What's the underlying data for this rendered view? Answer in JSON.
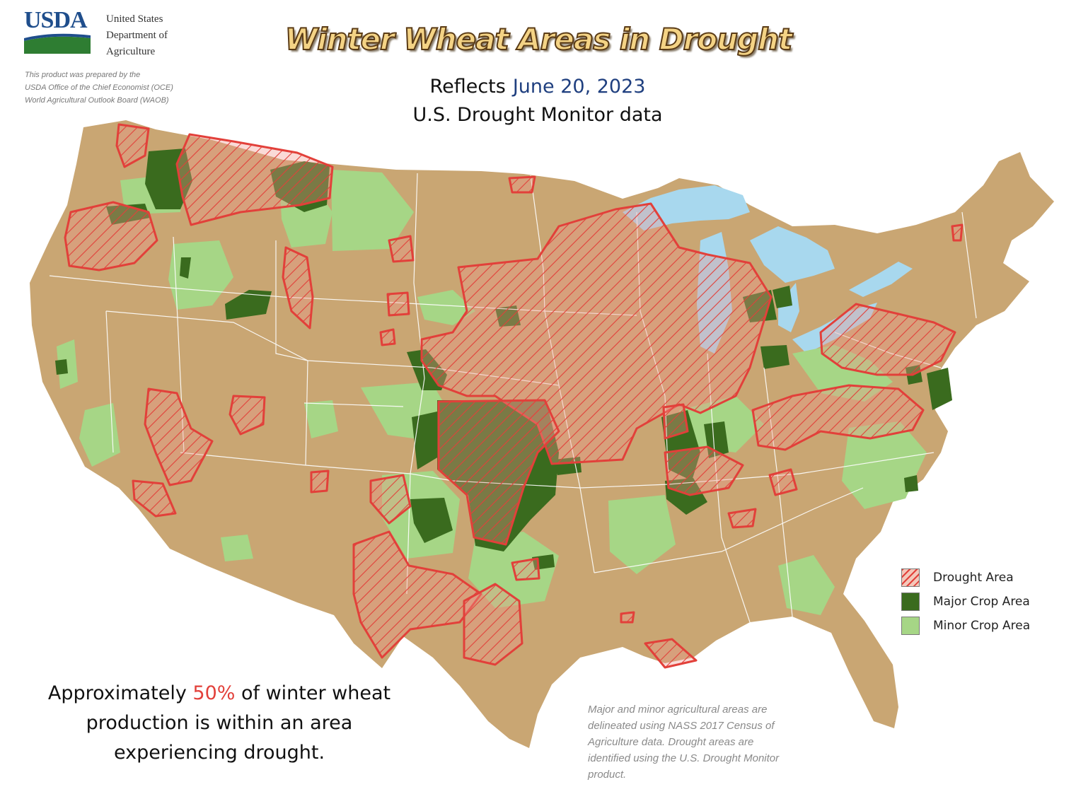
{
  "header": {
    "logo_text": "USDA",
    "agency_lines": [
      "United States",
      "Department of",
      "Agriculture"
    ],
    "prepared_lines": [
      "This product was prepared by the",
      "USDA Office of the Chief Economist (OCE)",
      "World Agricultural Outlook Board (WAOB)"
    ],
    "title": "Winter Wheat Areas in Drought",
    "subtitle_prefix": "Reflects",
    "subtitle_date": "June 20, 2023",
    "subtitle_line2": "U.S. Drought Monitor data"
  },
  "legend": {
    "items": [
      {
        "label": "Drought Area",
        "style": "red-hatch"
      },
      {
        "label": "Major Crop Area",
        "color": "#3a6b1e"
      },
      {
        "label": "Minor Crop Area",
        "color": "#a6d686"
      }
    ]
  },
  "stat_note": {
    "before": "Approximately ",
    "percent": "50%",
    "after": " of winter wheat production is within an area experiencing drought."
  },
  "source_note": {
    "lines": [
      "Major and minor agricultural areas are",
      "delineated using NASS 2017 Census of",
      "Agriculture data.  Drought areas are",
      "identified using the U.S. Drought Monitor",
      "product."
    ]
  },
  "colors": {
    "land": "#c9a673",
    "major_crop": "#3a6b1e",
    "minor_crop": "#a6d686",
    "drought_outline": "#e2403a",
    "water": "#a8d8ee",
    "state_border": "#ffffff",
    "title_fill": "#f4d385",
    "date_text": "#1f3f7f"
  }
}
